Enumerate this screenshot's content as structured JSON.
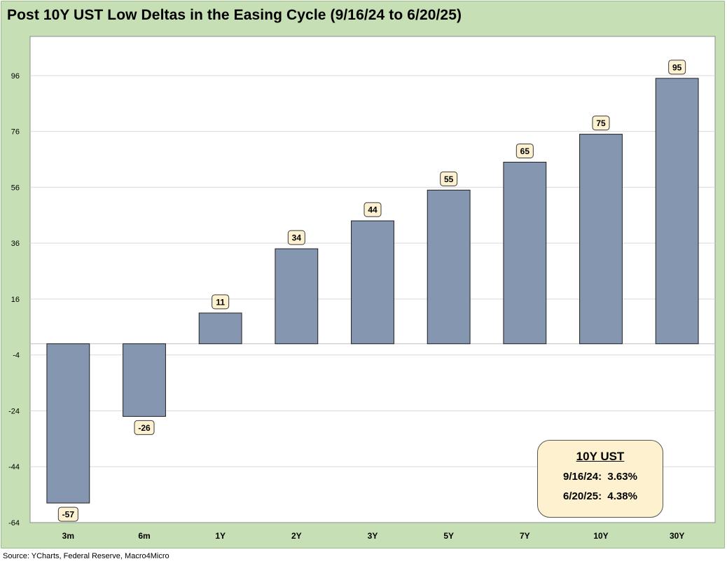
{
  "chart_data": {
    "type": "bar",
    "title": "Post 10Y UST Low Deltas in the Easing Cycle (9/16/24 to 6/20/25)",
    "categories": [
      "3m",
      "6m",
      "1Y",
      "2Y",
      "3Y",
      "5Y",
      "7Y",
      "10Y",
      "30Y"
    ],
    "values": [
      -57,
      -26,
      11,
      34,
      44,
      55,
      65,
      75,
      95
    ],
    "data_labels": [
      "-57",
      "-26",
      "11",
      "34",
      "44",
      "55",
      "65",
      "75",
      "95"
    ],
    "ylim": [
      -64,
      110
    ],
    "yticks": [
      96,
      76,
      56,
      36,
      16,
      -4,
      -24,
      -44,
      -64
    ],
    "grid": true,
    "bar_color": "#8496b0",
    "xlabel": "",
    "ylabel": ""
  },
  "info_box": {
    "title": "10Y UST",
    "line1": "9/16/24:  3.63%",
    "line2": "6/20/25:  4.38%"
  },
  "source": "Source: YCharts, Federal Reserve, Macro4Micro",
  "colors": {
    "frame_bg": "#c6dfb4",
    "plot_bg": "#ffffff",
    "label_bg": "#fdf1cf",
    "grid": "#d9d9d9"
  }
}
